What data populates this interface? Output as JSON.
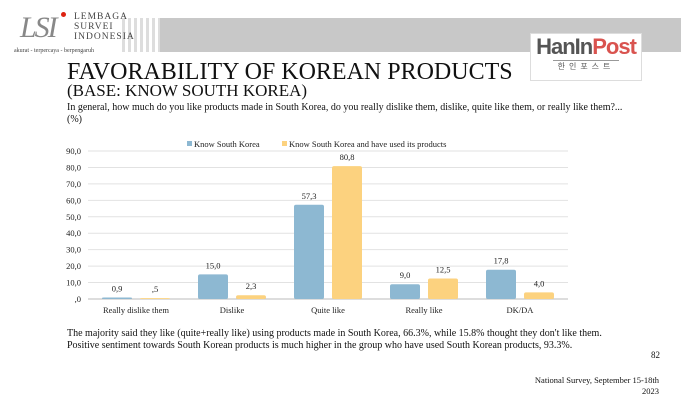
{
  "header": {
    "logo_lines": [
      "LEMBAGA",
      "SURVEI",
      "INDONESIA"
    ],
    "logo_tagline": "akurat - terpercaya - berpengaruh",
    "partner_logo": "HanInPost",
    "partner_logo_korean": "한인포스트"
  },
  "title": "FAVORABILITY OF KOREAN PRODUCTS",
  "subtitle": "(BASE: KNOW SOUTH KOREA)",
  "question": "In general, how much do you like products made in South Korea, do you really dislike them, dislike, quite like them, or really like them?... (%)",
  "note": "The majority said they like (quite+really like) using products made in South Korea, 66.3%, while 15.8% thought they don't like them. Positive sentiment towards South Korean products is much higher in the group who have used South Korean products, 93.3%.",
  "page_number": "82",
  "footer": {
    "line1": "National Survey, September 15-18th",
    "line2": "2023"
  },
  "colors": {
    "series1": "#8db8d2",
    "series2": "#fcd27f"
  },
  "chart_data": {
    "type": "bar",
    "categories": [
      "Really dislike them",
      "Dislike",
      "Quite like",
      "Really like",
      "DK/DA"
    ],
    "series": [
      {
        "name": "Know South Korea",
        "values": [
          0.9,
          15.0,
          57.3,
          9.0,
          17.8
        ],
        "labels": [
          "0,9",
          "15,0",
          "57,3",
          "9,0",
          "17,8"
        ]
      },
      {
        "name": "Know South Korea and have used its products",
        "values": [
          0.5,
          2.3,
          80.8,
          12.5,
          4.0
        ],
        "labels": [
          ",5",
          "2,3",
          "80,8",
          "12,5",
          "4,0"
        ]
      }
    ],
    "yticks": [
      ",0",
      "10,0",
      "20,0",
      "30,0",
      "40,0",
      "50,0",
      "60,0",
      "70,0",
      "80,0",
      "90,0"
    ],
    "ylim": [
      0,
      90
    ],
    "grid": true,
    "legend": "top-center"
  }
}
